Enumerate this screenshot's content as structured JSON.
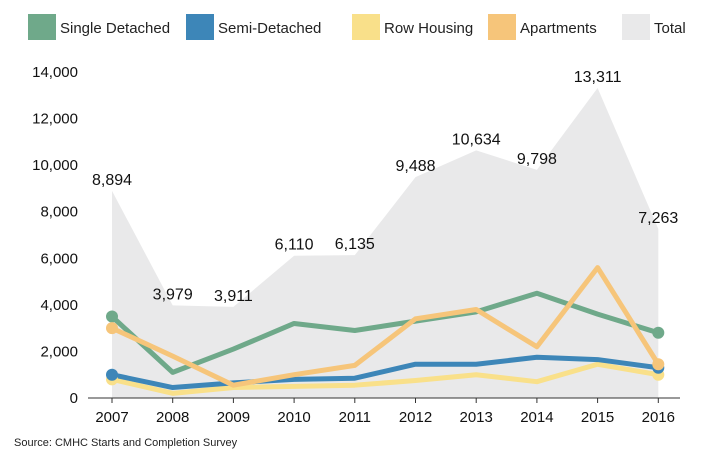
{
  "chart_data": {
    "type": "line",
    "title": "",
    "xlabel": "",
    "ylabel": "",
    "x": [
      "2007",
      "2008",
      "2009",
      "2010",
      "2011",
      "2012",
      "2013",
      "2014",
      "2015",
      "2016"
    ],
    "ylim": [
      0,
      14000
    ],
    "yticks": [
      "0",
      "2,000",
      "4,000",
      "6,000",
      "8,000",
      "10,000",
      "12,000",
      "14,000"
    ],
    "ytick_values": [
      0,
      2000,
      4000,
      6000,
      8000,
      10000,
      12000,
      14000
    ],
    "grid": false,
    "legend_position": "top",
    "total": {
      "name": "Total",
      "color": "#e9e9ea",
      "values": [
        8894,
        3979,
        3911,
        6110,
        6135,
        9488,
        10634,
        9798,
        13311,
        7263
      ],
      "labels": [
        "8,894",
        "3,979",
        "3,911",
        "6,110",
        "6,135",
        "9,488",
        "10,634",
        "9,798",
        "13,311",
        "7,263"
      ]
    },
    "series": [
      {
        "name": "Single Detached",
        "color": "#6fa98a",
        "values": [
          3500,
          1100,
          2100,
          3200,
          2900,
          3300,
          3700,
          4500,
          3600,
          2800
        ]
      },
      {
        "name": "Semi-Detached",
        "color": "#3d86b8",
        "values": [
          1000,
          450,
          650,
          800,
          850,
          1450,
          1450,
          1750,
          1650,
          1300
        ]
      },
      {
        "name": "Row Housing",
        "color": "#f9e08a",
        "values": [
          800,
          200,
          450,
          500,
          550,
          750,
          1000,
          700,
          1450,
          1000
        ]
      },
      {
        "name": "Apartments",
        "color": "#f6c57a",
        "values": [
          3000,
          1800,
          550,
          1000,
          1400,
          3400,
          3800,
          2200,
          5600,
          1450
        ]
      }
    ],
    "markers": {
      "Single Detached": [
        0,
        9
      ],
      "Semi-Detached": [
        0,
        9
      ],
      "Row Housing": [
        0,
        9
      ],
      "Apartments": [
        0,
        9
      ]
    },
    "source": "Source: CMHC Starts and Completion Survey"
  }
}
